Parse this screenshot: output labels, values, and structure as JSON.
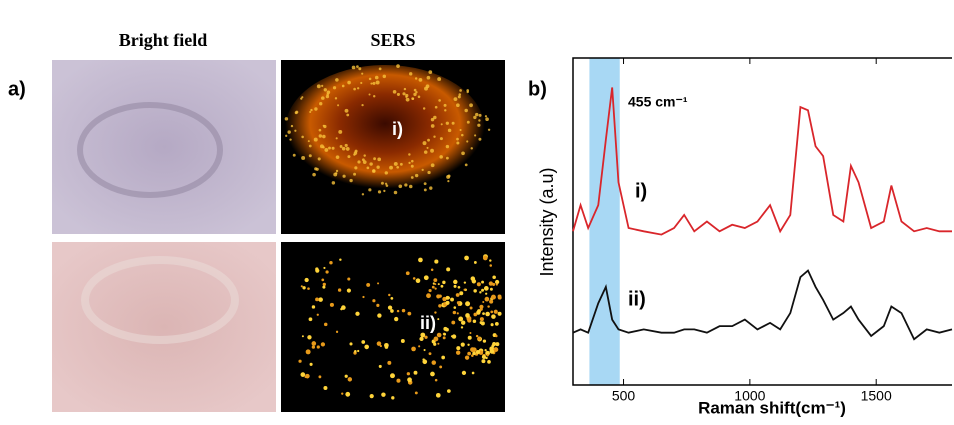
{
  "panel_a": {
    "label": "a)",
    "columns": [
      "Bright field",
      "SERS"
    ],
    "image_labels": [
      "i)",
      "ii)"
    ]
  },
  "chart_data": {
    "type": "line",
    "panel_label": "b)",
    "xlabel": "Raman shift(cm⁻¹)",
    "ylabel": "Intensity (a.u)",
    "annotation": "455 cm⁻¹",
    "highlight": [
      365,
      485
    ],
    "highlight_color": "#a8d8f4",
    "xlim": [
      300,
      1800
    ],
    "xticks": [
      500,
      1000,
      1500
    ],
    "ylim": [
      0,
      100
    ],
    "x": [
      300,
      330,
      360,
      400,
      430,
      455,
      480,
      520,
      580,
      650,
      700,
      740,
      780,
      830,
      880,
      930,
      980,
      1030,
      1080,
      1120,
      1160,
      1200,
      1230,
      1260,
      1290,
      1330,
      1370,
      1400,
      1430,
      1480,
      1530,
      1560,
      1600,
      1650,
      1700,
      1750,
      1800
    ],
    "series": [
      {
        "name": "i)",
        "color": "#d9262b",
        "values": [
          47,
          55,
          48,
          55,
          75,
          91,
          62,
          48,
          47,
          46,
          48,
          52,
          47,
          50,
          47,
          49,
          48,
          50,
          55,
          47,
          52,
          85,
          84,
          73,
          70,
          52,
          50,
          67,
          62,
          48,
          50,
          61,
          50,
          47,
          48,
          47,
          47
        ]
      },
      {
        "name": "ii)",
        "color": "#111111",
        "values": [
          16,
          17,
          16,
          25,
          30,
          20,
          17,
          16,
          17,
          16,
          16,
          17,
          17,
          16,
          18,
          18,
          20,
          17,
          19,
          17,
          22,
          33,
          35,
          30,
          26,
          20,
          22,
          24,
          20,
          15,
          18,
          24,
          22,
          14,
          17,
          16,
          17
        ]
      }
    ]
  }
}
